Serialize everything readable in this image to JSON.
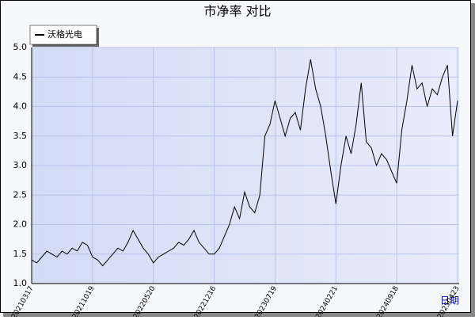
{
  "chart_data": {
    "type": "line",
    "title": "市净率 对比",
    "x_label": "日期",
    "categories": [
      "20210317",
      null,
      null,
      null,
      null,
      null,
      null,
      null,
      null,
      null,
      null,
      null,
      "20211019",
      null,
      null,
      null,
      null,
      null,
      null,
      null,
      null,
      null,
      null,
      null,
      "20220520",
      null,
      null,
      null,
      null,
      null,
      null,
      null,
      null,
      null,
      null,
      null,
      "20221216",
      null,
      null,
      null,
      null,
      null,
      null,
      null,
      null,
      null,
      null,
      null,
      "20230719",
      null,
      null,
      null,
      null,
      null,
      null,
      null,
      null,
      null,
      null,
      null,
      "20240221",
      null,
      null,
      null,
      null,
      null,
      null,
      null,
      null,
      null,
      null,
      null,
      "20240918",
      null,
      null,
      null,
      null,
      null,
      null,
      null,
      null,
      null,
      null,
      null,
      "20250423"
    ],
    "series": [
      {
        "name": "沃格光电",
        "color": "#000000",
        "values": [
          1.4,
          1.35,
          1.45,
          1.55,
          1.5,
          1.45,
          1.55,
          1.5,
          1.6,
          1.55,
          1.7,
          1.65,
          1.45,
          1.4,
          1.3,
          1.4,
          1.5,
          1.6,
          1.55,
          1.7,
          1.9,
          1.75,
          1.6,
          1.5,
          1.35,
          1.45,
          1.5,
          1.55,
          1.6,
          1.7,
          1.65,
          1.75,
          1.9,
          1.7,
          1.6,
          1.5,
          1.5,
          1.6,
          1.8,
          2.0,
          2.3,
          2.1,
          2.55,
          2.3,
          2.2,
          2.5,
          3.5,
          3.7,
          4.1,
          3.8,
          3.5,
          3.8,
          3.9,
          3.6,
          4.3,
          4.8,
          4.3,
          4.0,
          3.5,
          2.9,
          2.35,
          3.0,
          3.5,
          3.2,
          3.7,
          4.4,
          3.4,
          3.3,
          3.0,
          3.2,
          3.1,
          2.9,
          2.7,
          3.6,
          4.1,
          4.7,
          4.3,
          4.4,
          4.0,
          4.3,
          4.2,
          4.5,
          4.7,
          3.5,
          4.1
        ]
      }
    ],
    "ylim": [
      1.0,
      5.0
    ],
    "yticks": [
      {
        "value": 1.0,
        "label": "1.0"
      },
      {
        "value": 1.5,
        "label": "1.5"
      },
      {
        "value": 2.0,
        "label": "2.0"
      },
      {
        "value": 2.5,
        "label": "2.5"
      },
      {
        "value": 3.0,
        "label": "3.0"
      },
      {
        "value": 3.5,
        "label": "3.5"
      },
      {
        "value": 4.0,
        "label": "4.0"
      },
      {
        "value": 4.5,
        "label": "4.5"
      },
      {
        "value": 5.0,
        "label": "5.0"
      }
    ],
    "grid": true
  }
}
